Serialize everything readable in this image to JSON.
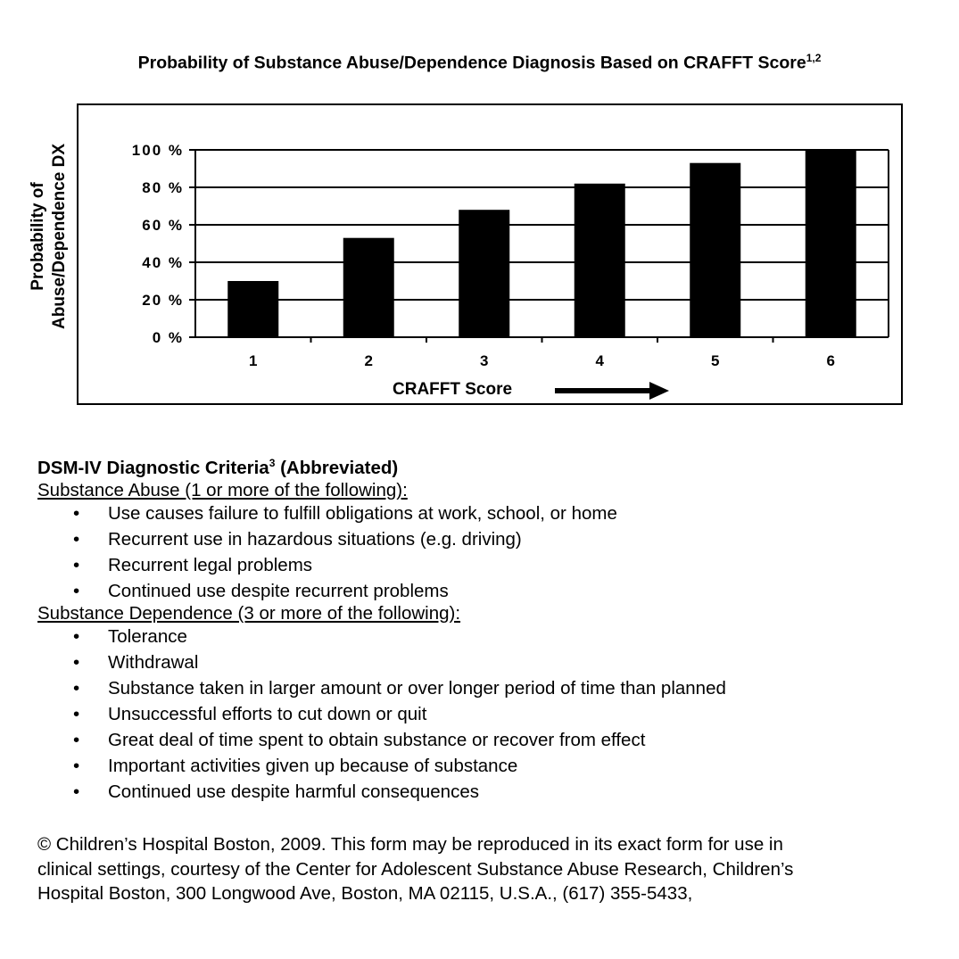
{
  "title": "Probability of Substance Abuse/Dependence Diagnosis Based on CRAFFT Score",
  "title_sup": "1,2",
  "chart_data": {
    "type": "bar",
    "categories": [
      "1",
      "2",
      "3",
      "4",
      "5",
      "6"
    ],
    "values": [
      30,
      53,
      68,
      82,
      93,
      100
    ],
    "ylabel_line1": "Probability of",
    "ylabel_line2": "Abuse/Dependence DX",
    "xlabel": "CRAFFT Score",
    "ylim": [
      0,
      100
    ],
    "yticks": [
      "0 %",
      "20 %",
      "40 %",
      "60 %",
      "80 %",
      "100 %"
    ],
    "ytick_values": [
      0,
      20,
      40,
      60,
      80,
      100
    ],
    "grid": true,
    "bar_color": "#000000"
  },
  "criteria": {
    "heading": "DSM-IV Diagnostic Criteria",
    "heading_sup": "3",
    "heading_suffix": " (Abbreviated)",
    "abuse_title": "Substance Abuse (1 or more of the following):",
    "abuse_items": [
      "Use causes failure to fulfill obligations at work, school, or home",
      "Recurrent use in hazardous situations (e.g. driving)",
      "Recurrent legal problems",
      "Continued use despite recurrent problems"
    ],
    "dependence_title": "Substance Dependence (3 or more of the following):",
    "dependence_items": [
      "Tolerance",
      "Withdrawal",
      "Substance taken in larger amount or over longer period of time than planned",
      "Unsuccessful efforts to cut down or quit",
      "Great deal of time spent to obtain substance or recover from effect",
      "Important activities given up because of substance",
      "Continued use despite harmful consequences"
    ]
  },
  "footer": {
    "line1": "© Children’s Hospital Boston, 2009. This form may be reproduced in its exact form for use in",
    "line2": "clinical settings, courtesy of the Center for Adolescent Substance Abuse Research, Children’s",
    "line3": "Hospital Boston, 300 Longwood Ave, Boston, MA 02115, U.S.A., (617) 355-5433,"
  }
}
